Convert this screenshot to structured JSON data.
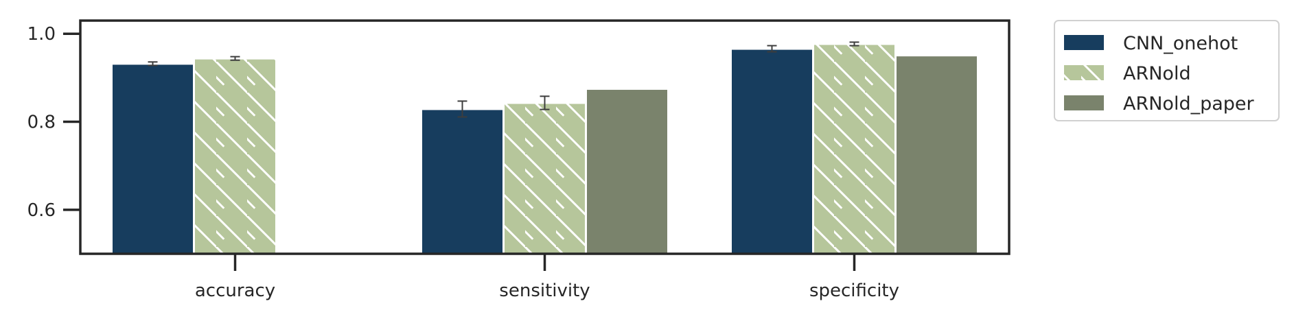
{
  "chart_data": {
    "type": "bar",
    "categories": [
      "accuracy",
      "sensitivity",
      "specificity"
    ],
    "series": [
      {
        "name": "CNN_onehot",
        "values": [
          0.932,
          0.829,
          0.966
        ],
        "errors": [
          0.004,
          0.018,
          0.007
        ],
        "color": "#173d5e",
        "hatch": false
      },
      {
        "name": "ARNold",
        "values": [
          0.944,
          0.843,
          0.977
        ],
        "errors": [
          0.004,
          0.015,
          0.004
        ],
        "color": "#b6c69b",
        "hatch": true
      },
      {
        "name": "ARNold_paper",
        "values": [
          null,
          0.875,
          0.951
        ],
        "errors": [
          null,
          null,
          null
        ],
        "color": "#7a836c",
        "hatch": false
      }
    ],
    "yticks": [
      "0.6",
      "0.8",
      "1.0"
    ],
    "ylim": [
      0.5,
      1.03
    ],
    "grid": false,
    "legend_position": "outside-top-right"
  }
}
